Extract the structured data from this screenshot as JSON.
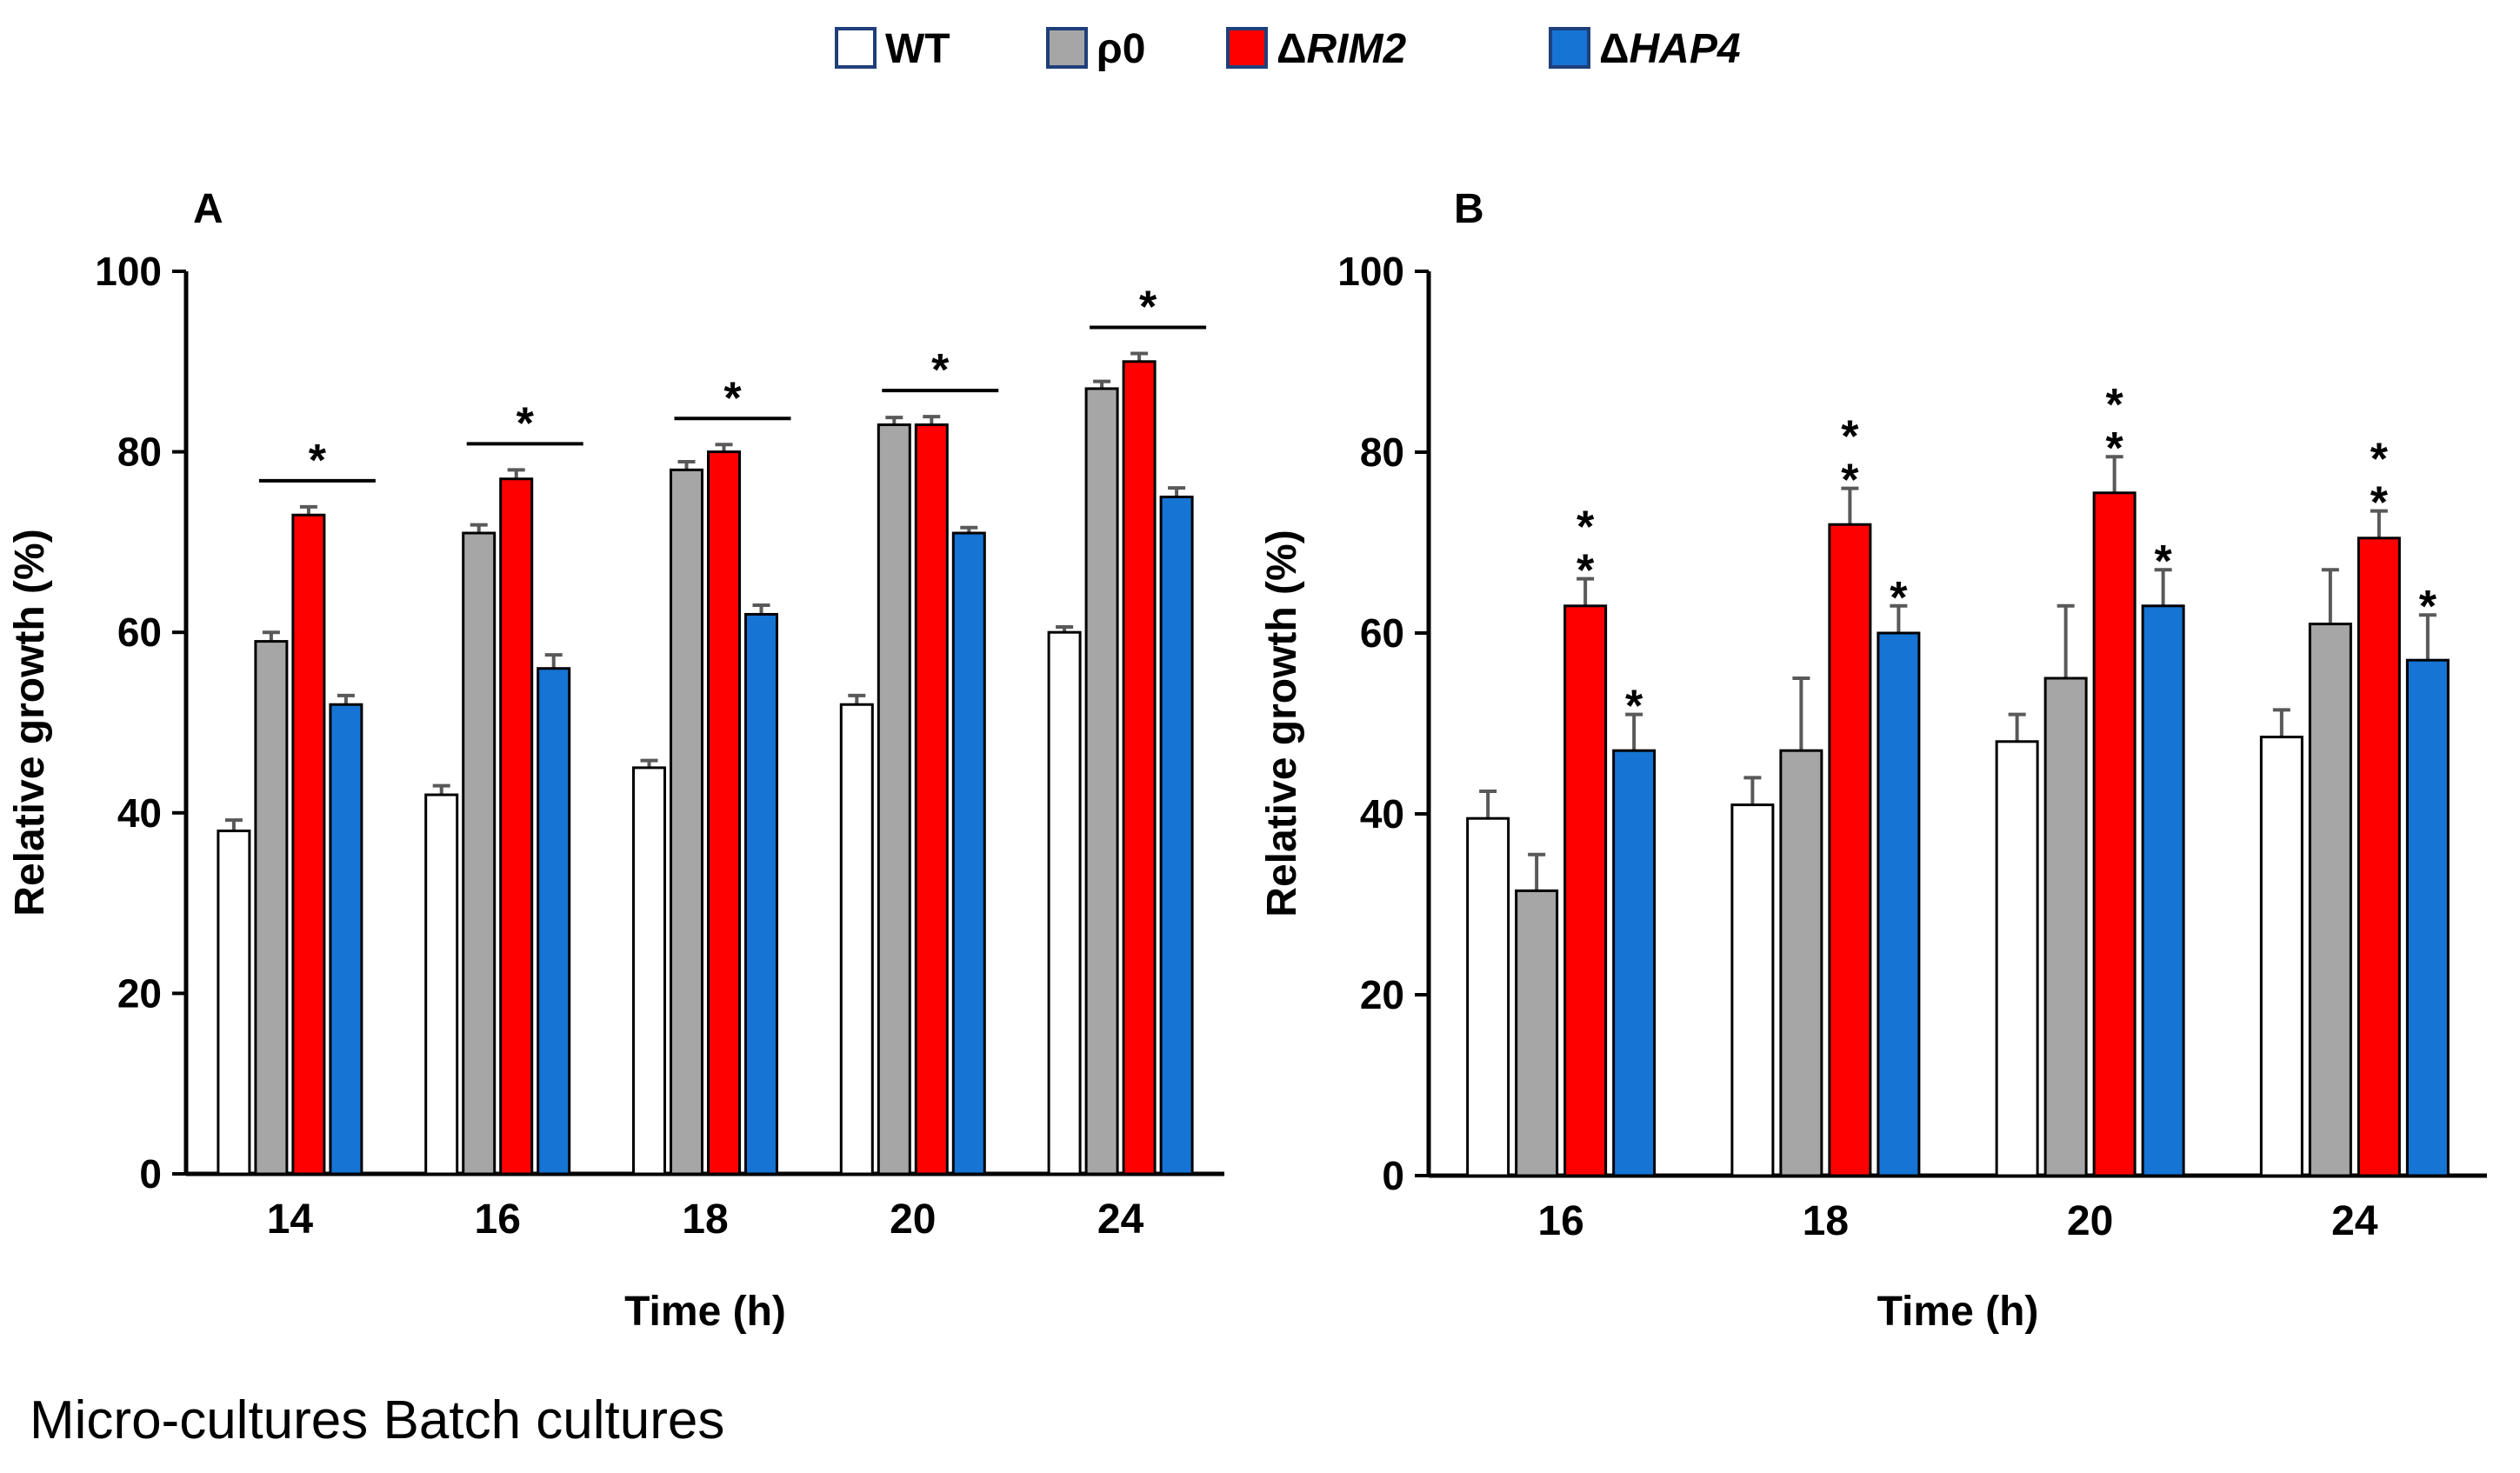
{
  "legend": {
    "entries": [
      {
        "key": "WT",
        "label": "WT",
        "italic": false,
        "fill": "#ffffff",
        "stroke": "#1f3f7a"
      },
      {
        "key": "rho0",
        "label": "ρ0",
        "italic": false,
        "fill": "#a6a6a6",
        "stroke": "#1f3f7a"
      },
      {
        "key": "dRIM2",
        "prefix": "Δ",
        "label": "RIM2",
        "italic": true,
        "fill": "#ff0000",
        "stroke": "#1f3f7a"
      },
      {
        "key": "dHAP4",
        "prefix": "Δ",
        "label": "HAP4",
        "italic": true,
        "fill": "#1574d4",
        "stroke": "#1f3f7a"
      }
    ]
  },
  "colors": {
    "WT": "#ffffff",
    "rho0": "#a6a6a6",
    "dRIM2": "#ff0000",
    "dHAP4": "#1574d4",
    "error": "#595959",
    "axis": "#000000"
  },
  "caption": "Micro-cultures Batch cultures",
  "chart_data": [
    {
      "type": "bar",
      "panel": "A",
      "title": "",
      "xlabel": "Time (h)",
      "ylabel": "Relative growth (%)",
      "ylim": [
        0,
        100
      ],
      "yticks": [
        0,
        20,
        40,
        60,
        80,
        100
      ],
      "categories": [
        "14",
        "16",
        "18",
        "20",
        "24"
      ],
      "series": [
        {
          "name": "WT",
          "values": [
            38,
            42,
            45,
            52,
            60
          ],
          "errors": [
            1.2,
            1.0,
            0.8,
            1.0,
            0.6
          ]
        },
        {
          "name": "ρ0",
          "values": [
            59,
            71,
            78,
            83,
            87
          ],
          "errors": [
            1.0,
            0.9,
            0.9,
            0.8,
            0.8
          ]
        },
        {
          "name": "ΔRIM2",
          "values": [
            73,
            77,
            80,
            83,
            90
          ],
          "errors": [
            0.9,
            1.0,
            0.8,
            0.9,
            0.9
          ]
        },
        {
          "name": "ΔHAP4",
          "values": [
            52,
            56,
            62,
            71,
            75
          ],
          "errors": [
            1.0,
            1.5,
            1.0,
            0.6,
            1.0
          ]
        }
      ],
      "annotations": [
        {
          "category": "14",
          "text": "*",
          "type": "bracket",
          "from_series": 1,
          "to_series": 3
        },
        {
          "category": "16",
          "text": "*",
          "type": "bracket",
          "from_series": 1,
          "to_series": 3
        },
        {
          "category": "18",
          "text": "*",
          "type": "bracket",
          "from_series": 1,
          "to_series": 3
        },
        {
          "category": "20",
          "text": "*",
          "type": "bracket",
          "from_series": 1,
          "to_series": 3
        },
        {
          "category": "24",
          "text": "*",
          "type": "bracket",
          "from_series": 1,
          "to_series": 3
        }
      ]
    },
    {
      "type": "bar",
      "panel": "B",
      "title": "",
      "xlabel": "Time (h)",
      "ylabel": "Relative growth (%)",
      "ylim": [
        0,
        100
      ],
      "yticks": [
        0,
        20,
        40,
        60,
        80,
        100
      ],
      "categories": [
        "16",
        "18",
        "20",
        "24"
      ],
      "series": [
        {
          "name": "WT",
          "values": [
            39.5,
            41,
            48,
            48.5
          ],
          "errors": [
            3,
            3,
            3,
            3
          ]
        },
        {
          "name": "ρ0",
          "values": [
            31.5,
            47,
            55,
            61
          ],
          "errors": [
            4,
            8,
            8,
            6
          ]
        },
        {
          "name": "ΔRIM2",
          "values": [
            63,
            72,
            75.5,
            70.5
          ],
          "errors": [
            3,
            4,
            4,
            3
          ]
        },
        {
          "name": "ΔHAP4",
          "values": [
            47,
            60,
            63,
            57
          ],
          "errors": [
            4,
            3,
            4,
            5
          ]
        }
      ],
      "annotations": [
        {
          "category": "16",
          "series": 2,
          "text": "*",
          "count": 2
        },
        {
          "category": "16",
          "series": 3,
          "text": "*",
          "count": 1
        },
        {
          "category": "18",
          "series": 2,
          "text": "*",
          "count": 2
        },
        {
          "category": "18",
          "series": 3,
          "text": "*",
          "count": 1
        },
        {
          "category": "20",
          "series": 2,
          "text": "*",
          "count": 2
        },
        {
          "category": "20",
          "series": 3,
          "text": "*",
          "count": 1
        },
        {
          "category": "24",
          "series": 2,
          "text": "*",
          "count": 2
        },
        {
          "category": "24",
          "series": 3,
          "text": "*",
          "count": 1
        }
      ]
    }
  ]
}
